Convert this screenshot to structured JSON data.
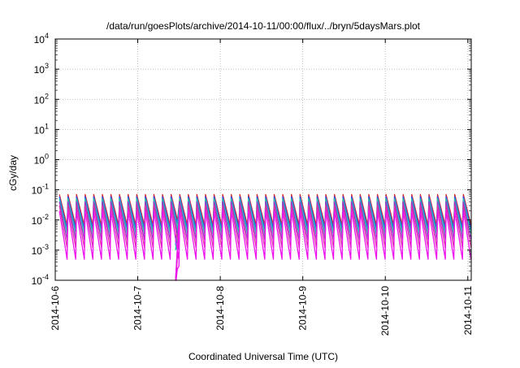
{
  "chart_data": {
    "type": "line",
    "title": "/data/run/goesPlots/archive/2014-10-11/00:00/flux/../bryn/5daysMars.plot",
    "xlabel": "Coordinated Universal Time (UTC)",
    "ylabel": "cGy/day",
    "yscale": "log",
    "ylim": [
      0.0001,
      10000
    ],
    "xlim": [
      "2014-10-06 00:00",
      "2014-10-11 01:00"
    ],
    "grid": true,
    "x_ticks": [
      "2014-10-6",
      "2014-10-7",
      "2014-10-8",
      "2014-10-9",
      "2014-10-10",
      "2014-10-11"
    ],
    "y_ticks": [
      {
        "base": "10",
        "exp": "-4"
      },
      {
        "base": "10",
        "exp": "-3"
      },
      {
        "base": "10",
        "exp": "-2"
      },
      {
        "base": "10",
        "exp": "-1"
      },
      {
        "base": "10",
        "exp": "0"
      },
      {
        "base": "10",
        "exp": "1"
      },
      {
        "base": "10",
        "exp": "2"
      },
      {
        "base": "10",
        "exp": "3"
      },
      {
        "base": "10",
        "exp": "4"
      }
    ],
    "pattern": {
      "period_hours": 2.5,
      "gap_start": "2014-10-07 11:00",
      "gap_end": "2014-10-07 12:00",
      "dip_min": 0.0001
    },
    "series": [
      {
        "color": "#ee2222",
        "peak": 0.07,
        "trough": 0.0065
      },
      {
        "color": "#2255ee",
        "peak": 0.06,
        "trough": 0.005
      },
      {
        "color": "#22ccaa",
        "peak": 0.05,
        "trough": 0.0035
      },
      {
        "color": "#9933cc",
        "peak": 0.04,
        "trough": 0.0022
      },
      {
        "color": "#dd33aa",
        "peak": 0.03,
        "trough": 0.0012
      },
      {
        "color": "#ee11ee",
        "peak": 0.02,
        "trough": 0.0005
      }
    ]
  }
}
